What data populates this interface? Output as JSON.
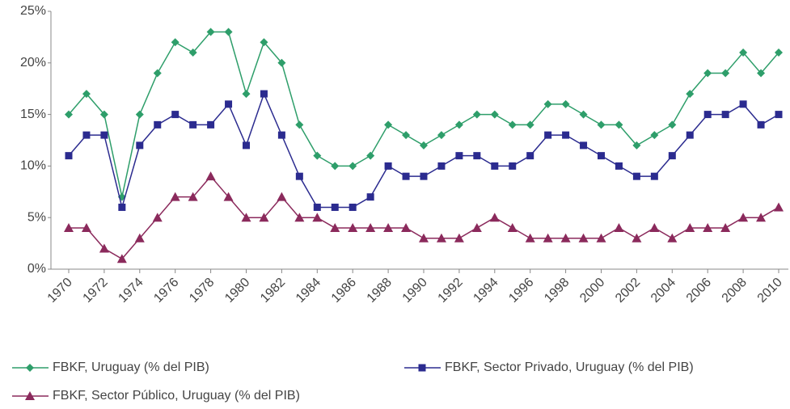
{
  "chart_data": {
    "type": "line",
    "x": [
      1970,
      1971,
      1972,
      1973,
      1974,
      1975,
      1976,
      1977,
      1978,
      1979,
      1980,
      1981,
      1982,
      1983,
      1984,
      1985,
      1986,
      1987,
      1988,
      1989,
      1990,
      1991,
      1992,
      1993,
      1994,
      1995,
      1996,
      1997,
      1998,
      1999,
      2000,
      2001,
      2002,
      2003,
      2004,
      2005,
      2006,
      2007,
      2008,
      2009,
      2010
    ],
    "xlim": [
      1970,
      2010
    ],
    "xticks": [
      1970,
      1972,
      1974,
      1976,
      1978,
      1980,
      1982,
      1984,
      1986,
      1988,
      1990,
      1992,
      1994,
      1996,
      1998,
      2000,
      2002,
      2004,
      2006,
      2008,
      2010
    ],
    "ylim": [
      0,
      25
    ],
    "yticks": [
      {
        "value": 0,
        "label": "0%"
      },
      {
        "value": 5,
        "label": "5%"
      },
      {
        "value": 10,
        "label": "10%"
      },
      {
        "value": 15,
        "label": "15%"
      },
      {
        "value": 20,
        "label": "20%"
      },
      {
        "value": 25,
        "label": "25%"
      }
    ],
    "series": [
      {
        "name": "FBKF, Uruguay (% del PIB)",
        "color": "#2e9e6a",
        "marker": "diamond",
        "values": [
          15,
          17,
          15,
          7,
          15,
          19,
          22,
          21,
          23,
          23,
          17,
          22,
          20,
          14,
          11,
          10,
          10,
          11,
          14,
          13,
          12,
          13,
          14,
          15,
          15,
          14,
          14,
          16,
          16,
          15,
          14,
          14,
          12,
          13,
          14,
          17,
          19,
          19,
          21,
          19,
          21
        ]
      },
      {
        "name": "FBKF, Sector Privado,  Uruguay (% del PIB)",
        "color": "#2b2b8f",
        "marker": "square",
        "values": [
          11,
          13,
          13,
          6,
          12,
          14,
          15,
          14,
          14,
          16,
          12,
          17,
          13,
          9,
          6,
          6,
          6,
          7,
          10,
          9,
          9,
          10,
          11,
          11,
          10,
          10,
          11,
          13,
          13,
          12,
          11,
          10,
          9,
          9,
          11,
          13,
          15,
          15,
          16,
          14,
          15
        ]
      },
      {
        "name": "FBKF, Sector Público,  Uruguay (% del PIB)",
        "color": "#8b2a5c",
        "marker": "triangle",
        "values": [
          4,
          4,
          2,
          1,
          3,
          5,
          7,
          7,
          9,
          7,
          5,
          5,
          7,
          5,
          5,
          4,
          4,
          4,
          4,
          4,
          3,
          3,
          3,
          4,
          5,
          4,
          3,
          3,
          3,
          3,
          3,
          4,
          3,
          4,
          3,
          4,
          4,
          4,
          5,
          5,
          6
        ]
      }
    ]
  }
}
